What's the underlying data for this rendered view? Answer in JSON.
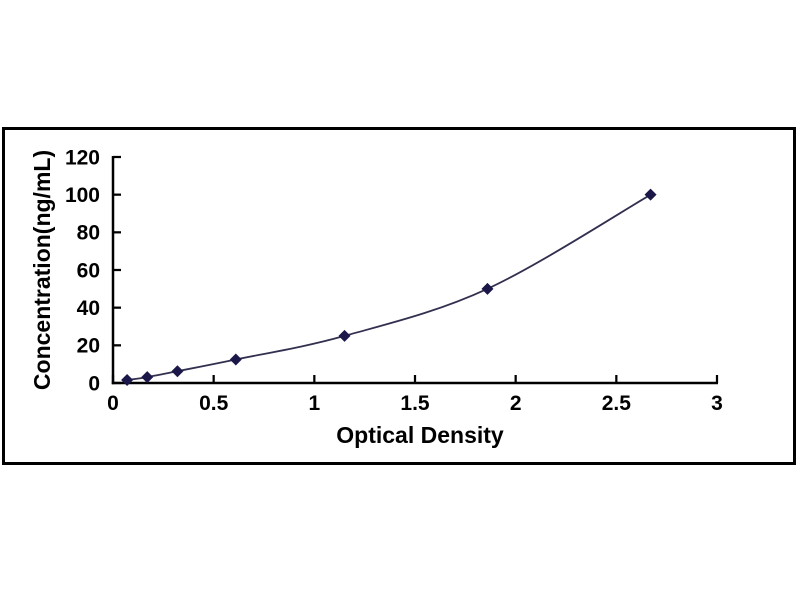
{
  "figure": {
    "background_color": "#ffffff",
    "frame_color": "#000000"
  },
  "chart_data": {
    "type": "line",
    "title": "",
    "xlabel": "Optical Density",
    "ylabel": "Concentration(ng/mL)",
    "x": [
      0.07,
      0.17,
      0.32,
      0.61,
      1.15,
      1.86,
      2.67
    ],
    "y": [
      1.56,
      3.12,
      6.25,
      12.5,
      25,
      50,
      100
    ],
    "xlim": [
      0,
      3
    ],
    "ylim": [
      0,
      120
    ],
    "x_tick_labels": [
      "0",
      "0.5",
      "1",
      "1.5",
      "2",
      "2.5",
      "3"
    ],
    "y_tick_labels": [
      "0",
      "20",
      "40",
      "60",
      "80",
      "100",
      "120"
    ],
    "grid": false,
    "legend": false,
    "smooth": true,
    "marker": "diamond",
    "colors": {
      "marker": "#1b1849",
      "line": "#32304f",
      "axis": "#000000",
      "text": "#000000",
      "frame": "#000000",
      "plot_background": "#ffffff"
    }
  }
}
